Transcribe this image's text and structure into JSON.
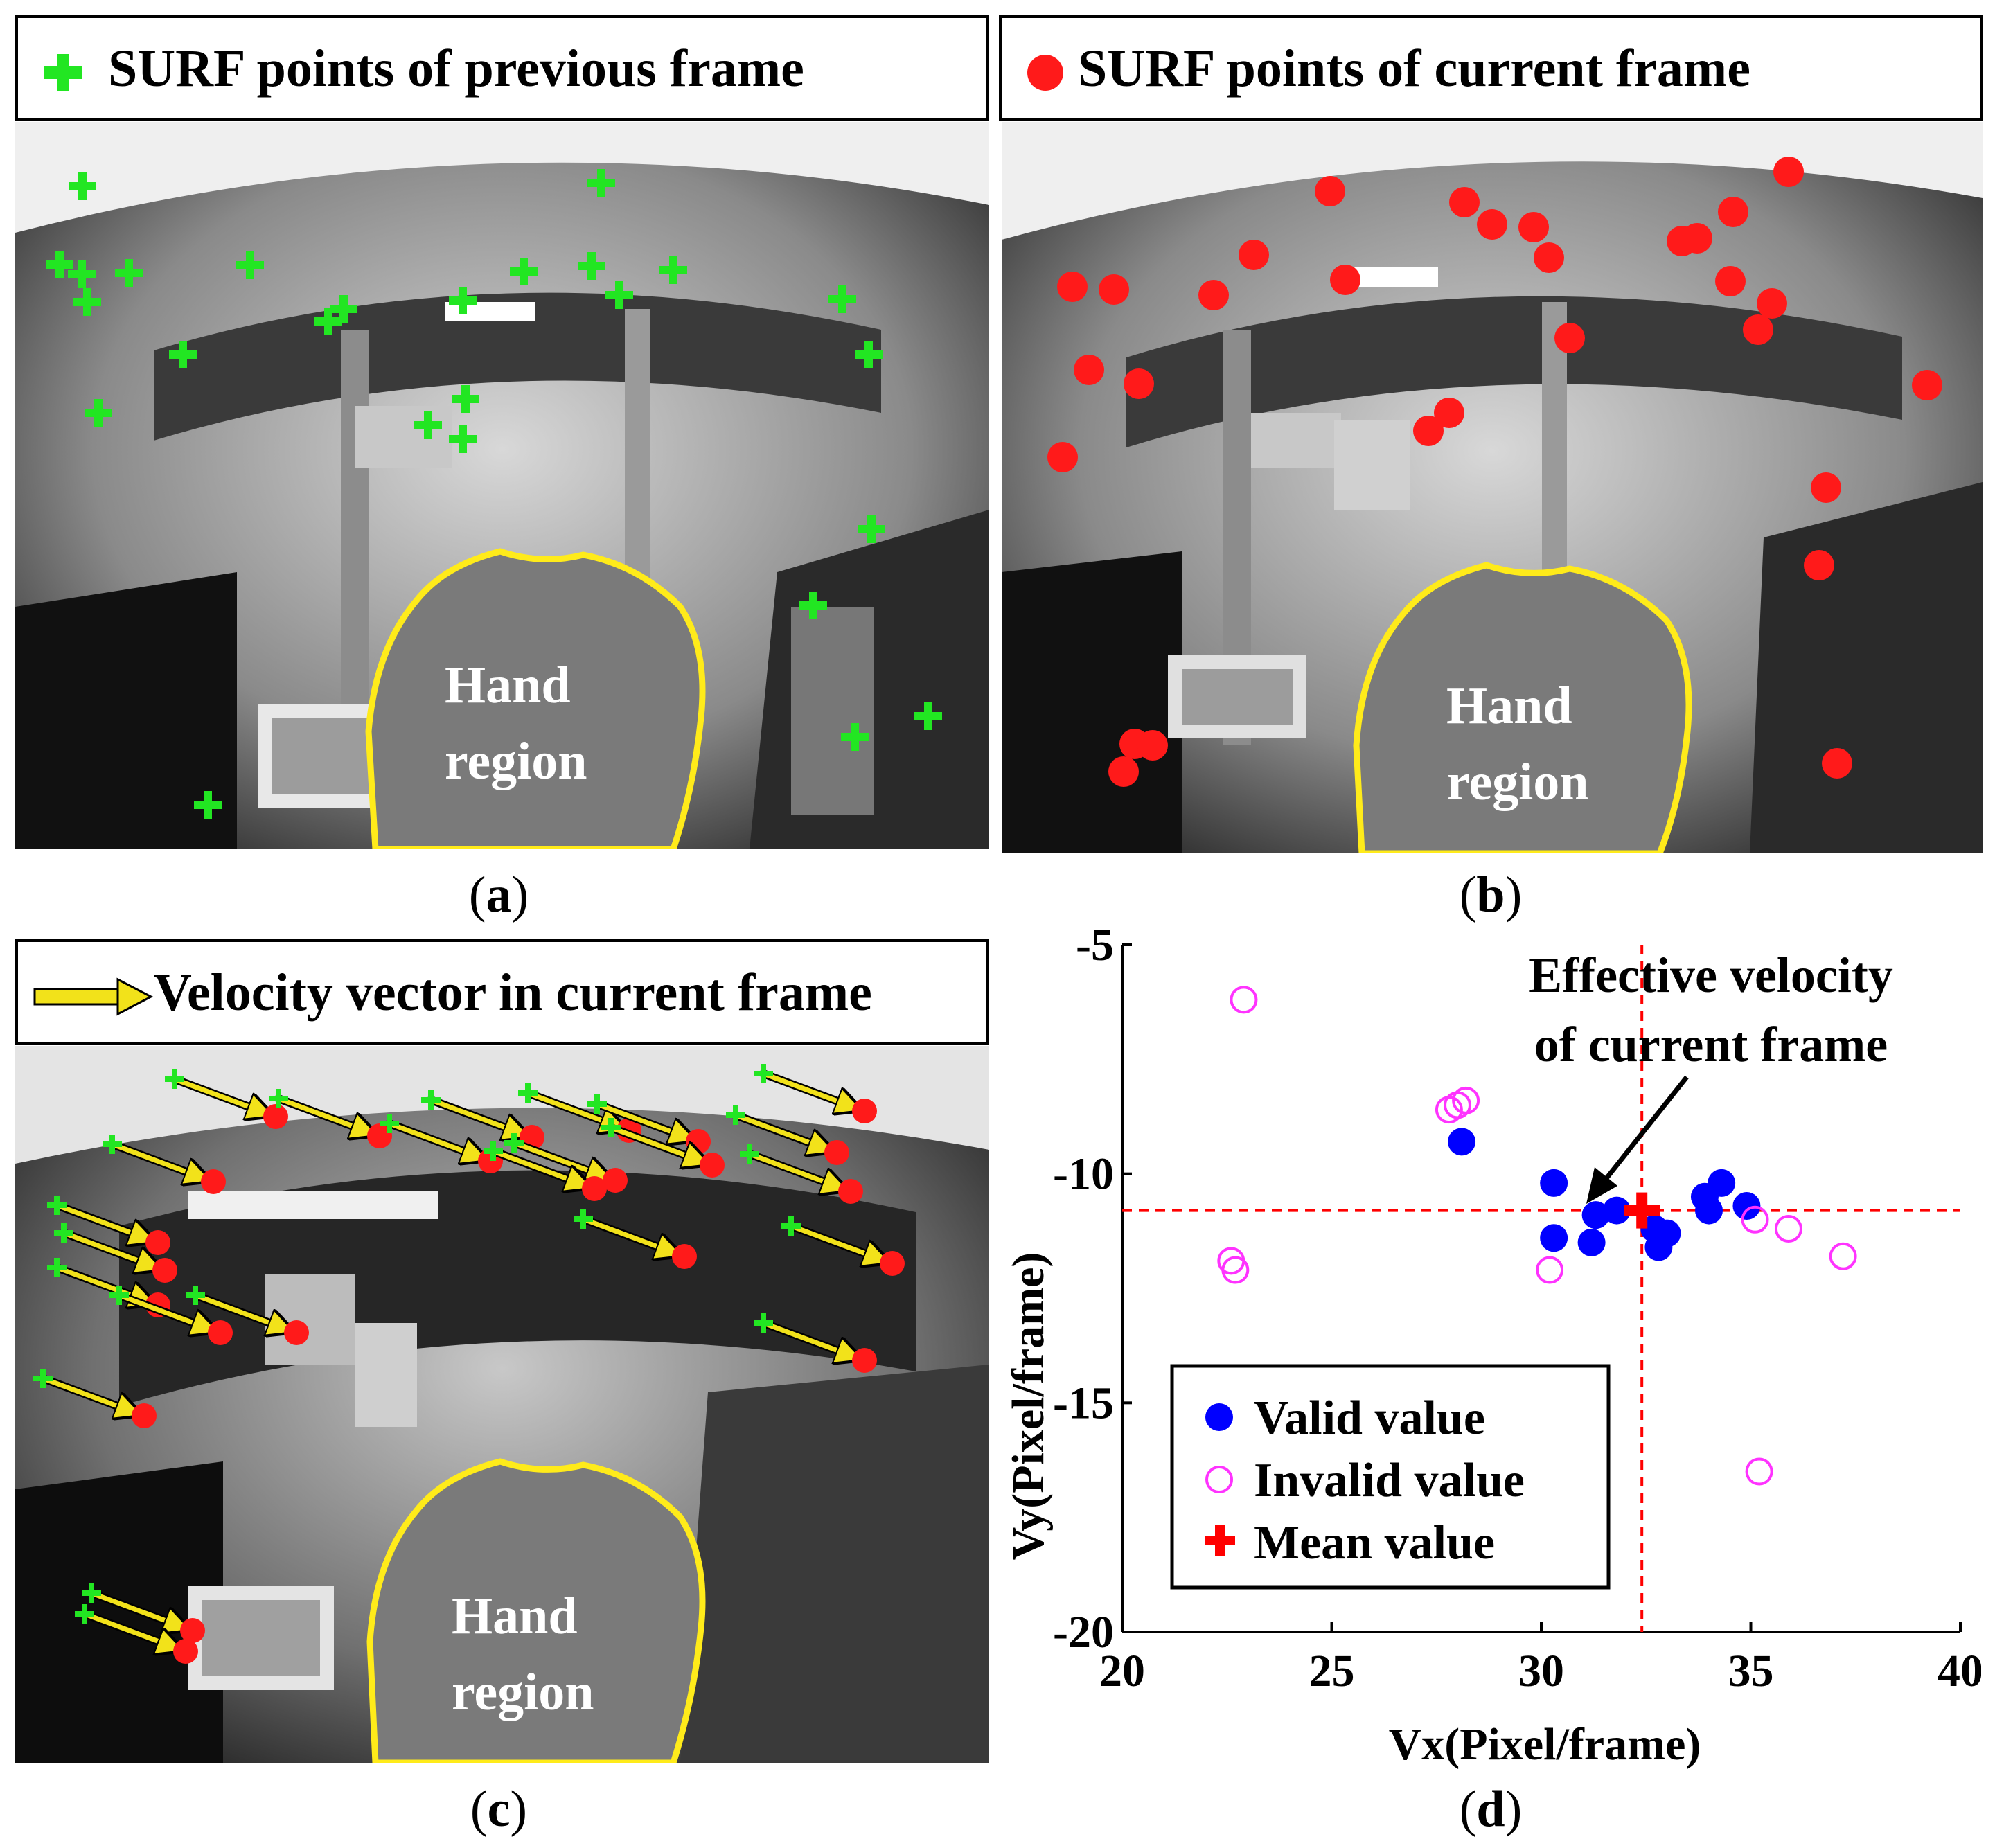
{
  "panel_a": {
    "legend": "SURF points of previous frame",
    "region_label_1": "Hand",
    "region_label_2": "region",
    "caption_letter": "a",
    "marker_color": "#22e622"
  },
  "panel_b": {
    "legend": "SURF points of current frame",
    "region_label_1": "Hand",
    "region_label_2": "region",
    "caption_letter": "b",
    "marker_color": "#ff1a1a"
  },
  "panel_c": {
    "legend": "Velocity vector in current frame",
    "region_label_1": "Hand",
    "region_label_2": "region",
    "caption_letter": "c",
    "arrow_color": "#f2e21a"
  },
  "panel_d": {
    "caption_letter": "d",
    "annotation_line1": "Effective velocity",
    "annotation_line2": "of current frame",
    "legend_valid": "Valid value",
    "legend_invalid": "Invalid value",
    "legend_mean": "Mean value"
  },
  "chart_data": {
    "type": "scatter",
    "xlabel": "Vx(Pixel/frame)",
    "ylabel": "Vy(Pixel/frame)",
    "xlim": [
      20,
      40
    ],
    "ylim": [
      -20,
      -5
    ],
    "xticks": [
      20,
      25,
      30,
      35,
      40
    ],
    "yticks": [
      -5,
      -10,
      -15,
      -20
    ],
    "series": [
      {
        "name": "Valid value",
        "marker": "filled-circle",
        "color": "#0000ff",
        "points": [
          [
            28.1,
            -9.3
          ],
          [
            30.3,
            -10.2
          ],
          [
            30.3,
            -11.4
          ],
          [
            31.2,
            -11.5
          ],
          [
            31.3,
            -10.9
          ],
          [
            31.8,
            -10.8
          ],
          [
            32.7,
            -11.2
          ],
          [
            32.8,
            -11.6
          ],
          [
            33.0,
            -11.3
          ],
          [
            33.9,
            -10.5
          ],
          [
            34.0,
            -10.8
          ],
          [
            34.3,
            -10.2
          ],
          [
            34.9,
            -10.7
          ]
        ]
      },
      {
        "name": "Invalid value",
        "marker": "open-circle",
        "color": "#ff33ff",
        "points": [
          [
            22.9,
            -6.2
          ],
          [
            27.8,
            -8.6
          ],
          [
            28.0,
            -8.5
          ],
          [
            28.2,
            -8.4
          ],
          [
            22.6,
            -11.9
          ],
          [
            22.7,
            -12.1
          ],
          [
            30.2,
            -12.1
          ],
          [
            35.1,
            -11.0
          ],
          [
            35.9,
            -11.2
          ],
          [
            37.2,
            -11.8
          ],
          [
            35.2,
            -16.5
          ]
        ]
      },
      {
        "name": "Mean value",
        "marker": "plus",
        "color": "#ff0000",
        "points": [
          [
            32.4,
            -10.8
          ]
        ]
      }
    ],
    "mean_guides": {
      "x": 32.4,
      "y": -10.8,
      "style": "dashed",
      "color": "#ff0000"
    },
    "annotation": {
      "text": "Effective velocity of current frame",
      "points_to": [
        32.5,
        -10.8
      ]
    },
    "legend_position": "bottom-left",
    "grid": false
  }
}
